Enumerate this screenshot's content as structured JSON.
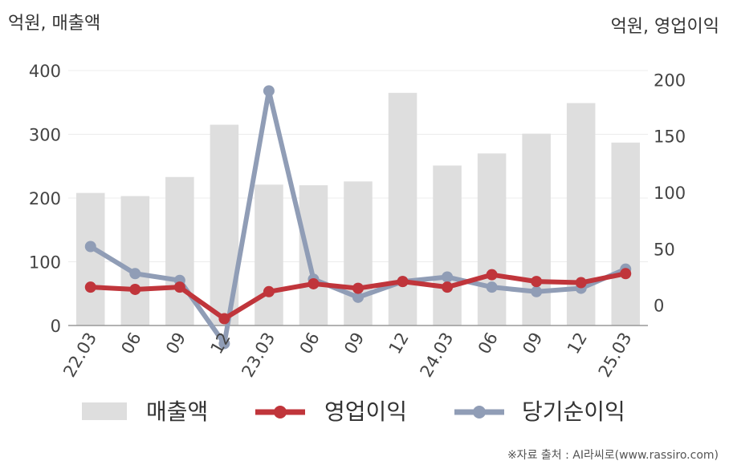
{
  "chart_data": {
    "type": "bar+line",
    "categories": [
      "22.03",
      "06",
      "09",
      "12",
      "23.03",
      "06",
      "09",
      "12",
      "24.03",
      "06",
      "09",
      "12",
      "25.03"
    ],
    "left_axis": {
      "label": "억원, 매출액",
      "ylim": [
        0,
        400
      ],
      "ticks": [
        "0",
        "100",
        "200",
        "300",
        "400"
      ]
    },
    "right_axis": {
      "label": "억원, 영업이익",
      "ylim": [
        -18,
        208
      ],
      "ticks": [
        "0",
        "50",
        "100",
        "150",
        "200"
      ]
    },
    "series": [
      {
        "name": "매출액",
        "kind": "bar",
        "axis": "left",
        "color": "#dedede",
        "values": [
          208,
          203,
          233,
          315,
          221,
          220,
          226,
          365,
          251,
          270,
          301,
          349,
          287
        ]
      },
      {
        "name": "영업이익",
        "kind": "line",
        "axis": "right",
        "color": "#c0353b",
        "values": [
          16,
          14,
          16,
          -12,
          12,
          19,
          15,
          21,
          16,
          27,
          21,
          20,
          28
        ]
      },
      {
        "name": "당기순이익",
        "kind": "line",
        "axis": "right",
        "color": "#909db6",
        "values": [
          52,
          28,
          22,
          -34,
          190,
          23,
          7,
          21,
          25,
          16,
          12,
          15,
          32
        ]
      }
    ],
    "grid": true,
    "legend_position": "bottom"
  },
  "source": "※자료 출처 : AI라씨로(www.rassiro.com)"
}
